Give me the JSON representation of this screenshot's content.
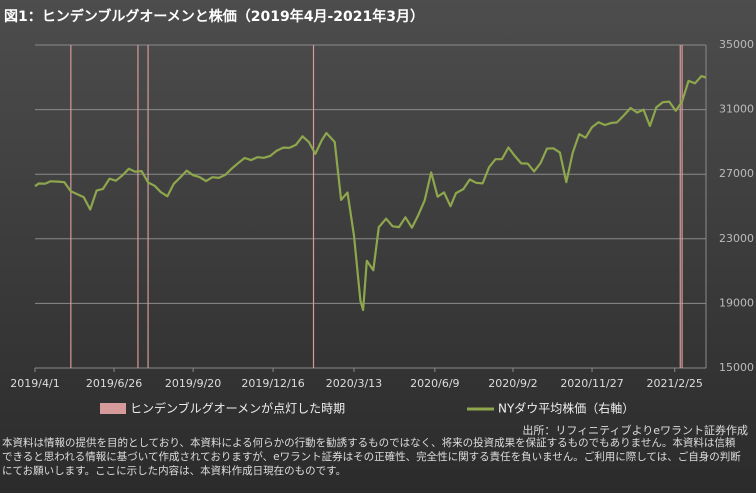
{
  "chart_data": {
    "type": "line",
    "title": "図1：ヒンデンブルグオーメンと株価（2019年4月-2021年3月）",
    "source": "出所：リフィニティブよりeワラント証券作成",
    "series": [
      {
        "name": "NYダウ平均株価（右軸）",
        "color": "#8ea64c",
        "x": [
          "2019/4/1",
          "2019/4/5",
          "2019/4/12",
          "2019/4/18",
          "2019/4/26",
          "2019/5/3",
          "2019/5/10",
          "2019/5/17",
          "2019/5/24",
          "2019/5/31",
          "2019/6/7",
          "2019/6/14",
          "2019/6/21",
          "2019/6/28",
          "2019/7/5",
          "2019/7/12",
          "2019/7/19",
          "2019/7/26",
          "2019/8/2",
          "2019/8/9",
          "2019/8/16",
          "2019/8/23",
          "2019/8/30",
          "2019/9/6",
          "2019/9/13",
          "2019/9/20",
          "2019/9/27",
          "2019/10/4",
          "2019/10/11",
          "2019/10/18",
          "2019/10/25",
          "2019/11/1",
          "2019/11/8",
          "2019/11/15",
          "2019/11/22",
          "2019/11/29",
          "2019/12/6",
          "2019/12/13",
          "2019/12/20",
          "2019/12/27",
          "2020/1/3",
          "2020/1/10",
          "2020/1/17",
          "2020/1/24",
          "2020/1/31",
          "2020/2/7",
          "2020/2/12",
          "2020/2/21",
          "2020/2/28",
          "2020/3/6",
          "2020/3/13",
          "2020/3/20",
          "2020/3/23",
          "2020/3/27",
          "2020/4/3",
          "2020/4/9",
          "2020/4/17",
          "2020/4/24",
          "2020/5/1",
          "2020/5/8",
          "2020/5/15",
          "2020/5/22",
          "2020/5/29",
          "2020/6/5",
          "2020/6/12",
          "2020/6/19",
          "2020/6/26",
          "2020/7/2",
          "2020/7/10",
          "2020/7/17",
          "2020/7/24",
          "2020/7/31",
          "2020/8/7",
          "2020/8/14",
          "2020/8/21",
          "2020/8/28",
          "2020/9/4",
          "2020/9/11",
          "2020/9/18",
          "2020/9/25",
          "2020/10/2",
          "2020/10/9",
          "2020/10/16",
          "2020/10/23",
          "2020/10/30",
          "2020/11/6",
          "2020/11/13",
          "2020/11/20",
          "2020/11/27",
          "2020/12/4",
          "2020/12/11",
          "2020/12/18",
          "2020/12/24",
          "2020/12/31",
          "2021/1/8",
          "2021/1/15",
          "2021/1/22",
          "2021/1/29",
          "2021/2/5",
          "2021/2/12",
          "2021/2/19",
          "2021/2/26",
          "2021/3/5",
          "2021/3/12",
          "2021/3/19",
          "2021/3/26",
          "2021/3/31"
        ],
        "values": [
          26258,
          26425,
          26412,
          26559,
          26543,
          26505,
          25942,
          25764,
          25585,
          24815,
          25984,
          26089,
          26719,
          26600,
          26922,
          27332,
          27154,
          27192,
          26485,
          26287,
          25886,
          25629,
          26403,
          26797,
          27220,
          26935,
          26820,
          26573,
          26817,
          26770,
          26958,
          27347,
          27681,
          28005,
          27876,
          28051,
          28015,
          28135,
          28455,
          28645,
          28634,
          28823,
          29348,
          28990,
          28256,
          29103,
          29551,
          28992,
          25409,
          25865,
          23186,
          19174,
          18592,
          21637,
          21053,
          23719,
          24242,
          23775,
          23724,
          24331,
          23685,
          24465,
          25383,
          27111,
          25606,
          25871,
          25016,
          25827,
          26075,
          26672,
          26470,
          26428,
          27433,
          27931,
          27930,
          28654,
          28133,
          27666,
          27657,
          27174,
          27683,
          28587,
          28606,
          28336,
          26502,
          28323,
          29480,
          29263,
          29910,
          30218,
          30046,
          30179,
          30200,
          30606,
          31098,
          30814,
          30997,
          29983,
          31148,
          31458,
          31494,
          30932,
          31496,
          32779,
          32628,
          33073,
          32982
        ]
      }
    ],
    "events": {
      "name": "ヒンデンブルグオーメンが点灯した時期",
      "color": "#d69a9a",
      "x": [
        "2019/5/10",
        "2019/7/22",
        "2019/8/2",
        "2020/1/29",
        "2021/3/3",
        "2021/3/5"
      ]
    },
    "xlim": [
      "2019/4/1",
      "2021/3/31"
    ],
    "xticks": [
      "2019/4/1",
      "2019/6/26",
      "2019/9/20",
      "2019/12/16",
      "2020/3/13",
      "2020/6/9",
      "2020/9/2",
      "2020/11/27",
      "2021/2/25"
    ],
    "ylim": [
      15000,
      35000
    ],
    "yticks": [
      15000,
      19000,
      23000,
      27000,
      31000,
      35000
    ],
    "grid": true
  },
  "disclaimer": [
    "本資料は情報の提供を目的としており、本資料による何らかの行動を勧誘するものではなく、将来の投資成果を保証するものでもありません。本資料は信頼",
    "できると思われる情報に基づいて作成されておりますが、eワラント証券はその正確性、完全性に関する責任を負いません。ご利用に際しては、ご自身の判断",
    "にてお願いします。ここに示した内容は、本資料作成日現在のものです。"
  ]
}
